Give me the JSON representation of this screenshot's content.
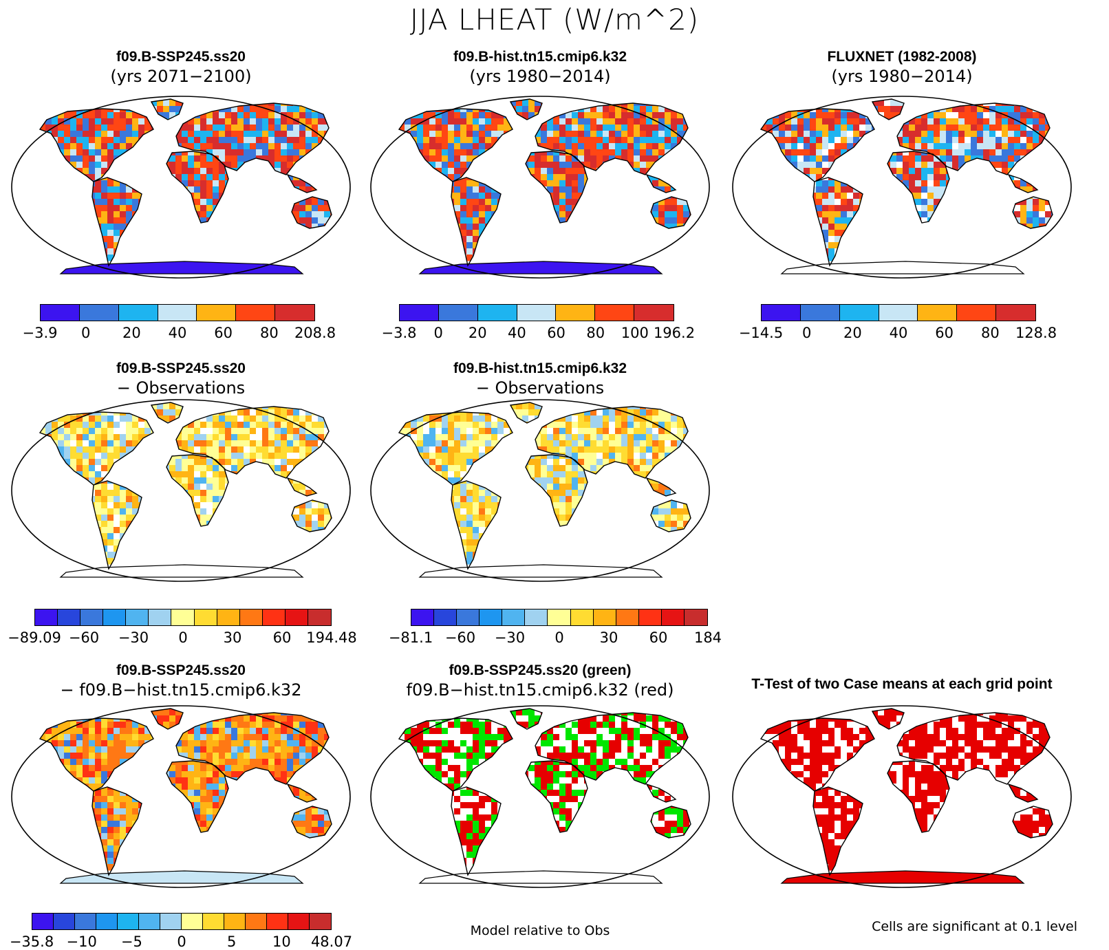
{
  "figure": {
    "title": "JJA LHEAT (W/m^2)",
    "footer_center": "Model relative to Obs",
    "footer_right": "Cells are significant at 0.1 level"
  },
  "panels": [
    {
      "id": "p1",
      "title1": "f09.B-SSP245.ss20",
      "title2": "(yrs 2071−2100)",
      "colorbar": {
        "colors": [
          "#3c14f0",
          "#3a78dc",
          "#1eb4f0",
          "#c8e6f5",
          "#ffb414",
          "#ff4614",
          "#d72d2d"
        ],
        "labels": [
          "−3.9",
          "0",
          "20",
          "40",
          "60",
          "80",
          "208.8"
        ]
      }
    },
    {
      "id": "p2",
      "title1": "f09.B-hist.tn15.cmip6.k32",
      "title2": "(yrs 1980−2014)",
      "colorbar": {
        "colors": [
          "#3c14f0",
          "#3a78dc",
          "#1eb4f0",
          "#c8e6f5",
          "#ffb414",
          "#ff4614",
          "#d72d2d"
        ],
        "labels": [
          "−3.8",
          "0",
          "20",
          "40",
          "60",
          "80",
          "100",
          "196.2"
        ]
      }
    },
    {
      "id": "p3",
      "title1": "FLUXNET (1982-2008)",
      "title2": "(yrs 1980−2014)",
      "colorbar": {
        "colors": [
          "#3c14f0",
          "#3a78dc",
          "#1eb4f0",
          "#c8e6f5",
          "#ffb414",
          "#ff4614",
          "#d72d2d"
        ],
        "labels": [
          "−14.5",
          "0",
          "20",
          "40",
          "60",
          "80",
          "128.8"
        ]
      }
    },
    {
      "id": "p4",
      "title1": "f09.B-SSP245.ss20",
      "title2": "− Observations",
      "colorbar": {
        "colors": [
          "#3c14f0",
          "#2846dc",
          "#3a78dc",
          "#1e96f0",
          "#50b4f0",
          "#a0d2f0",
          "#ffff96",
          "#ffdc32",
          "#ffb414",
          "#ff7814",
          "#ff3214",
          "#e61414",
          "#c82d2d"
        ],
        "labels": [
          "−89.09",
          "−60",
          "−30",
          "0",
          "30",
          "60",
          "194.48"
        ]
      }
    },
    {
      "id": "p5",
      "title1": "f09.B-hist.tn15.cmip6.k32",
      "title2": "− Observations",
      "colorbar": {
        "colors": [
          "#3c14f0",
          "#2846dc",
          "#3a78dc",
          "#1e96f0",
          "#50b4f0",
          "#a0d2f0",
          "#ffff96",
          "#ffdc32",
          "#ffb414",
          "#ff7814",
          "#ff3214",
          "#e61414",
          "#c82d2d"
        ],
        "labels": [
          "−81.1",
          "−60",
          "−30",
          "0",
          "30",
          "60",
          "184"
        ]
      }
    },
    {
      "id": "p7",
      "title1": "f09.B-SSP245.ss20",
      "title2": "− f09.B−hist.tn15.cmip6.k32",
      "colorbar": {
        "colors": [
          "#3c14f0",
          "#2846dc",
          "#3a78dc",
          "#1e96f0",
          "#1eb4f0",
          "#50b4f0",
          "#a0d2f0",
          "#ffff96",
          "#ffdc32",
          "#ffb414",
          "#ff7814",
          "#ff3214",
          "#e61414",
          "#c82d2d"
        ],
        "labels": [
          "−35.8",
          "−10",
          "−5",
          "0",
          "5",
          "10",
          "48.07"
        ]
      }
    },
    {
      "id": "p8",
      "title1": "f09.B-SSP245.ss20 (green)",
      "title2": "f09.B−hist.tn15.cmip6.k32 (red)"
    },
    {
      "id": "p9",
      "title1": "T-Test of two Case means at each grid point"
    }
  ]
}
